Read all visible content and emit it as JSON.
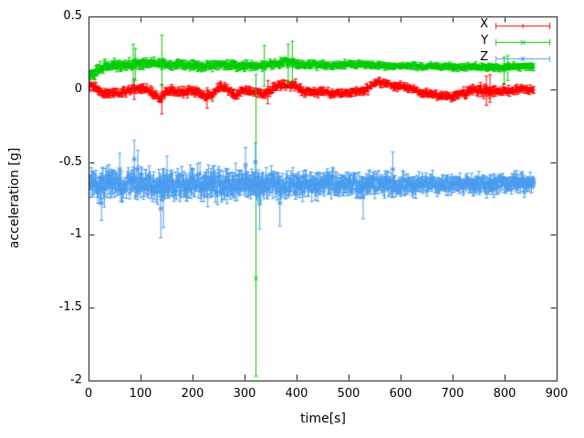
{
  "figure": {
    "background": "#ffffff",
    "frame_color": "#000000",
    "text_color": "#000000"
  },
  "chart_data": {
    "type": "scatter",
    "title": "",
    "xlabel": "time[s]",
    "ylabel": "acceleration [g]",
    "xlim": [
      0,
      900
    ],
    "ylim": [
      -2,
      0.5
    ],
    "grid": false,
    "legend_position": "top-right",
    "seed": 1234,
    "xticks": [
      {
        "v": 0,
        "label": "0"
      },
      {
        "v": 100,
        "label": "100"
      },
      {
        "v": 200,
        "label": "200"
      },
      {
        "v": 300,
        "label": "300"
      },
      {
        "v": 400,
        "label": "400"
      },
      {
        "v": 500,
        "label": "500"
      },
      {
        "v": 600,
        "label": "600"
      },
      {
        "v": 700,
        "label": "700"
      },
      {
        "v": 800,
        "label": "800"
      },
      {
        "v": 900,
        "label": "900"
      }
    ],
    "yticks": [
      {
        "v": 0.5,
        "label": "0.5"
      },
      {
        "v": 0,
        "label": "0"
      },
      {
        "v": -0.5,
        "label": "-0.5"
      },
      {
        "v": -1,
        "label": "-1"
      },
      {
        "v": -1.5,
        "label": "-1.5"
      },
      {
        "v": -2,
        "label": "-2"
      }
    ],
    "series": [
      {
        "name": "X",
        "color": "#ff0000",
        "marker": "plus",
        "x_start": 3,
        "x_end": 857,
        "step": 1.6,
        "noise": 0.008,
        "err": 0.022,
        "anchors": [
          [
            0,
            0.03
          ],
          [
            18,
            0.0
          ],
          [
            30,
            -0.035
          ],
          [
            45,
            -0.02
          ],
          [
            60,
            -0.03
          ],
          [
            75,
            0.0
          ],
          [
            90,
            0.01
          ],
          [
            105,
            0.0
          ],
          [
            120,
            -0.02
          ],
          [
            138,
            -0.065
          ],
          [
            148,
            -0.02
          ],
          [
            165,
            -0.015
          ],
          [
            185,
            -0.02
          ],
          [
            205,
            -0.01
          ],
          [
            225,
            -0.055
          ],
          [
            240,
            -0.03
          ],
          [
            255,
            0.02
          ],
          [
            270,
            -0.01
          ],
          [
            282,
            -0.04
          ],
          [
            295,
            -0.01
          ],
          [
            310,
            -0.02
          ],
          [
            325,
            -0.015
          ],
          [
            340,
            -0.03
          ],
          [
            355,
            0.0
          ],
          [
            368,
            0.035
          ],
          [
            380,
            0.02
          ],
          [
            395,
            0.03
          ],
          [
            410,
            -0.01
          ],
          [
            425,
            -0.02
          ],
          [
            445,
            -0.015
          ],
          [
            465,
            -0.025
          ],
          [
            485,
            -0.03
          ],
          [
            505,
            -0.02
          ],
          [
            525,
            -0.015
          ],
          [
            542,
            0.02
          ],
          [
            558,
            0.05
          ],
          [
            572,
            0.04
          ],
          [
            588,
            0.02
          ],
          [
            605,
            0.02
          ],
          [
            622,
            0.0
          ],
          [
            640,
            -0.025
          ],
          [
            660,
            -0.03
          ],
          [
            680,
            -0.045
          ],
          [
            700,
            -0.05
          ],
          [
            715,
            -0.035
          ],
          [
            730,
            -0.02
          ],
          [
            748,
            -0.01
          ],
          [
            762,
            -0.005
          ],
          [
            778,
            -0.01
          ],
          [
            795,
            -0.015
          ],
          [
            815,
            -0.005
          ],
          [
            835,
            0.0
          ],
          [
            857,
            -0.005
          ]
        ],
        "nscale": [
          [
            0,
            1.0
          ],
          [
            400,
            1.0
          ],
          [
            550,
            0.85
          ],
          [
            700,
            0.9
          ],
          [
            760,
            1.3
          ],
          [
            800,
            1.0
          ],
          [
            857,
            0.8
          ]
        ],
        "outliers": [
          {
            "x": 88,
            "y": 0.0,
            "lo": -0.07,
            "hi": 0.07
          },
          {
            "x": 141,
            "y": -0.07,
            "lo": -0.17,
            "hi": 0.03
          },
          {
            "x": 228,
            "y": -0.06,
            "lo": -0.13,
            "hi": 0.01
          },
          {
            "x": 345,
            "y": -0.02,
            "lo": -0.1,
            "hi": 0.06
          },
          {
            "x": 765,
            "y": -0.01,
            "lo": -0.11,
            "hi": 0.09
          },
          {
            "x": 772,
            "y": 0.0,
            "lo": -0.09,
            "hi": 0.1
          }
        ]
      },
      {
        "name": "Y",
        "color": "#00cc00",
        "marker": "cross",
        "x_start": 3,
        "x_end": 857,
        "step": 1.6,
        "noise": 0.007,
        "err": 0.02,
        "anchors": [
          [
            0,
            0.1
          ],
          [
            10,
            0.11
          ],
          [
            22,
            0.14
          ],
          [
            35,
            0.16
          ],
          [
            50,
            0.17
          ],
          [
            70,
            0.17
          ],
          [
            85,
            0.175
          ],
          [
            100,
            0.17
          ],
          [
            115,
            0.175
          ],
          [
            130,
            0.18
          ],
          [
            145,
            0.17
          ],
          [
            160,
            0.165
          ],
          [
            180,
            0.17
          ],
          [
            200,
            0.165
          ],
          [
            215,
            0.155
          ],
          [
            230,
            0.16
          ],
          [
            245,
            0.165
          ],
          [
            260,
            0.175
          ],
          [
            275,
            0.165
          ],
          [
            290,
            0.16
          ],
          [
            305,
            0.165
          ],
          [
            320,
            0.16
          ],
          [
            335,
            0.165
          ],
          [
            350,
            0.17
          ],
          [
            365,
            0.175
          ],
          [
            380,
            0.19
          ],
          [
            390,
            0.185
          ],
          [
            400,
            0.17
          ],
          [
            415,
            0.165
          ],
          [
            430,
            0.17
          ],
          [
            445,
            0.165
          ],
          [
            460,
            0.16
          ],
          [
            475,
            0.165
          ],
          [
            490,
            0.17
          ],
          [
            505,
            0.17
          ],
          [
            520,
            0.17
          ],
          [
            540,
            0.165
          ],
          [
            560,
            0.165
          ],
          [
            580,
            0.16
          ],
          [
            600,
            0.16
          ],
          [
            620,
            0.16
          ],
          [
            640,
            0.155
          ],
          [
            660,
            0.16
          ],
          [
            680,
            0.155
          ],
          [
            700,
            0.155
          ],
          [
            720,
            0.15
          ],
          [
            740,
            0.155
          ],
          [
            760,
            0.15
          ],
          [
            780,
            0.15
          ],
          [
            800,
            0.15
          ],
          [
            820,
            0.155
          ],
          [
            840,
            0.155
          ],
          [
            857,
            0.16
          ]
        ],
        "nscale": [
          [
            0,
            1.3
          ],
          [
            200,
            1.1
          ],
          [
            400,
            1.0
          ],
          [
            600,
            0.8
          ],
          [
            857,
            0.9
          ]
        ],
        "outliers": [
          {
            "x": 86,
            "y": 0.18,
            "lo": 0.05,
            "hi": 0.31
          },
          {
            "x": 90,
            "y": 0.17,
            "lo": 0.06,
            "hi": 0.28
          },
          {
            "x": 141,
            "y": 0.2,
            "lo": 0.03,
            "hi": 0.37
          },
          {
            "x": 322,
            "y": -1.3,
            "lo": -1.97,
            "hi": 0.1
          },
          {
            "x": 338,
            "y": 0.16,
            "lo": 0.02,
            "hi": 0.3
          },
          {
            "x": 384,
            "y": 0.19,
            "lo": 0.04,
            "hi": 0.31
          },
          {
            "x": 392,
            "y": 0.2,
            "lo": 0.06,
            "hi": 0.33
          },
          {
            "x": 799,
            "y": 0.13,
            "lo": 0.04,
            "hi": 0.22
          },
          {
            "x": 806,
            "y": 0.14,
            "lo": 0.06,
            "hi": 0.23
          }
        ]
      },
      {
        "name": "Z",
        "color": "#4a9cee",
        "marker": "star",
        "x_start": 3,
        "x_end": 857,
        "step": 1.25,
        "noise": 0.028,
        "err": 0.055,
        "anchors": [
          [
            0,
            -0.64
          ],
          [
            20,
            -0.66
          ],
          [
            40,
            -0.65
          ],
          [
            60,
            -0.66
          ],
          [
            80,
            -0.64
          ],
          [
            100,
            -0.66
          ],
          [
            120,
            -0.65
          ],
          [
            140,
            -0.67
          ],
          [
            160,
            -0.65
          ],
          [
            180,
            -0.66
          ],
          [
            200,
            -0.65
          ],
          [
            220,
            -0.66
          ],
          [
            240,
            -0.65
          ],
          [
            260,
            -0.66
          ],
          [
            280,
            -0.65
          ],
          [
            300,
            -0.64
          ],
          [
            320,
            -0.655
          ],
          [
            340,
            -0.66
          ],
          [
            360,
            -0.65
          ],
          [
            380,
            -0.665
          ],
          [
            400,
            -0.65
          ],
          [
            420,
            -0.66
          ],
          [
            440,
            -0.655
          ],
          [
            460,
            -0.65
          ],
          [
            480,
            -0.66
          ],
          [
            500,
            -0.65
          ],
          [
            520,
            -0.66
          ],
          [
            540,
            -0.65
          ],
          [
            560,
            -0.655
          ],
          [
            580,
            -0.65
          ],
          [
            600,
            -0.66
          ],
          [
            620,
            -0.65
          ],
          [
            640,
            -0.655
          ],
          [
            660,
            -0.65
          ],
          [
            680,
            -0.65
          ],
          [
            700,
            -0.655
          ],
          [
            720,
            -0.65
          ],
          [
            740,
            -0.65
          ],
          [
            760,
            -0.655
          ],
          [
            780,
            -0.65
          ],
          [
            800,
            -0.65
          ],
          [
            820,
            -0.65
          ],
          [
            840,
            -0.65
          ],
          [
            857,
            -0.65
          ]
        ],
        "nscale": [
          [
            0,
            1.15
          ],
          [
            250,
            1.15
          ],
          [
            420,
            1.0
          ],
          [
            550,
            0.9
          ],
          [
            650,
            0.72
          ],
          [
            857,
            0.68
          ]
        ],
        "outliers": [
          {
            "x": 25,
            "y": -0.78,
            "lo": -0.9,
            "hi": -0.65
          },
          {
            "x": 60,
            "y": -0.55,
            "lo": -0.68,
            "hi": -0.44
          },
          {
            "x": 88,
            "y": -0.48,
            "lo": -0.62,
            "hi": -0.35
          },
          {
            "x": 95,
            "y": -0.55,
            "lo": -0.7,
            "hi": -0.42
          },
          {
            "x": 139,
            "y": -0.82,
            "lo": -1.02,
            "hi": -0.63
          },
          {
            "x": 144,
            "y": -0.74,
            "lo": -0.95,
            "hi": -0.56
          },
          {
            "x": 151,
            "y": -0.6,
            "lo": -0.73,
            "hi": -0.46
          },
          {
            "x": 302,
            "y": -0.52,
            "lo": -0.66,
            "hi": -0.4
          },
          {
            "x": 321,
            "y": -0.5,
            "lo": -0.65,
            "hi": -0.37
          },
          {
            "x": 329,
            "y": -0.78,
            "lo": -0.96,
            "hi": -0.6
          },
          {
            "x": 368,
            "y": -0.78,
            "lo": -0.94,
            "hi": -0.62
          },
          {
            "x": 528,
            "y": -0.74,
            "lo": -0.89,
            "hi": -0.6
          },
          {
            "x": 585,
            "y": -0.55,
            "lo": -0.68,
            "hi": -0.43
          }
        ]
      }
    ]
  }
}
